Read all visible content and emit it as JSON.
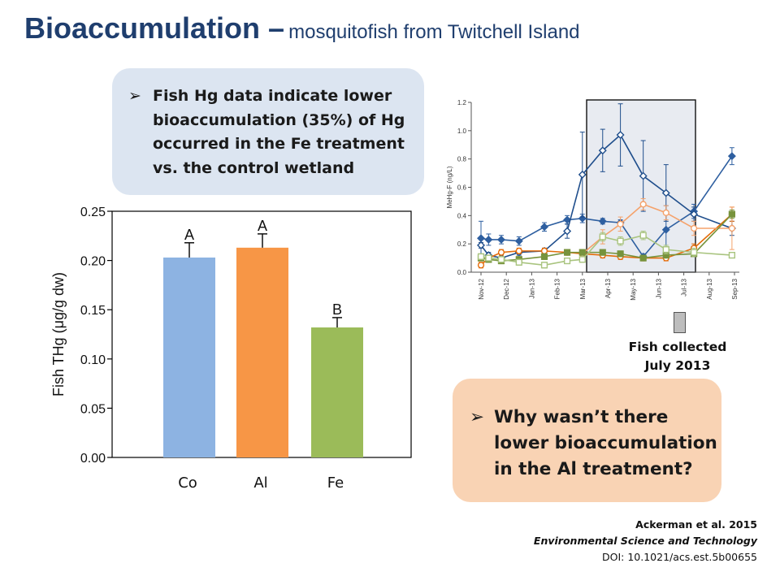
{
  "slide": {
    "title": "Bioaccumulation –",
    "subtitle": "mosquitofish from Twitchell Island"
  },
  "callouts": {
    "top": "Fish Hg data indicate lower bioaccumulation (35%) of Hg occurred in the Fe treatment vs. the control wetland",
    "bottom": "Why wasn’t there lower bioaccumulation in the Al treatment?",
    "bullet_symbol": "➢"
  },
  "annotation": {
    "line1": "Fish collected",
    "line2": "July 2013"
  },
  "citation": {
    "authors": "Ackerman et al. 2015",
    "journal": "Environmental Science and Technology",
    "doi": "DOI: 10.1021/acs.est.5b00655"
  },
  "colors": {
    "title": "#1f3e6e",
    "co": "#8db3e2",
    "al": "#f79646",
    "fe": "#9bbb59",
    "highlight_box": "#e8ebf1"
  },
  "chart_data": [
    {
      "type": "bar",
      "categories": [
        "Co",
        "Al",
        "Fe"
      ],
      "values": [
        0.203,
        0.213,
        0.132
      ],
      "errors": [
        0.015,
        0.014,
        0.01
      ],
      "letters": [
        "A",
        "A",
        "B"
      ],
      "colors": [
        "#8db3e2",
        "#f79646",
        "#9bbb59"
      ],
      "ylabel": "Fish THg (μg/g dw)",
      "ylim": [
        0,
        0.25
      ],
      "yticks": [
        "0.00",
        "0.05",
        "0.10",
        "0.15",
        "0.20",
        "0.25"
      ],
      "grid": false
    },
    {
      "type": "line",
      "ylabel": "MeHg-F (ng/L)",
      "ylim": [
        0,
        1.2
      ],
      "yticks": [
        "0.0",
        "0.2",
        "0.4",
        "0.6",
        "0.8",
        "1.0",
        "1.2"
      ],
      "xticks": [
        "Nov-12",
        "Dec-12",
        "Jan-13",
        "Feb-13",
        "Mar-13",
        "Apr-13",
        "May-13",
        "Jun-13",
        "Jul-13",
        "Aug-13",
        "Sep-13"
      ],
      "highlight_range": [
        "Mar-13",
        "Aug-13"
      ],
      "series": [
        {
          "color": "#2e5fa0",
          "marker": "diamond",
          "filled": true,
          "x": [
            0,
            0.3,
            0.8,
            1.5,
            2.5,
            3.4,
            4.0,
            4.8,
            5.5,
            6.4,
            7.3,
            8.4,
            9.9
          ],
          "y": [
            0.24,
            0.23,
            0.23,
            0.22,
            0.32,
            0.37,
            0.38,
            0.36,
            0.35,
            0.11,
            0.3,
            0.43,
            0.82
          ],
          "err": [
            0.12,
            0.04,
            0.03,
            0.03,
            0.03,
            0.03,
            0.03,
            0.02,
            0.02,
            0.02,
            0.17,
            0.05,
            0.06
          ]
        },
        {
          "color": "#1f4e8c",
          "marker": "diamond",
          "filled": false,
          "x": [
            0,
            0.3,
            0.8,
            1.5,
            2.5,
            3.4,
            4.0,
            4.8,
            5.5,
            6.4,
            7.3,
            8.4,
            9.9
          ],
          "y": [
            0.19,
            0.12,
            0.1,
            0.14,
            0.15,
            0.29,
            0.69,
            0.86,
            0.97,
            0.68,
            0.56,
            0.41,
            0.31
          ],
          "err": [
            0.02,
            0.02,
            0.02,
            0.02,
            0.02,
            0.05,
            0.3,
            0.15,
            0.22,
            0.25,
            0.2,
            0.05,
            0.05
          ]
        },
        {
          "color": "#e46c0a",
          "marker": "circle",
          "filled": false,
          "x": [
            0,
            0.3,
            0.8,
            1.5,
            2.5,
            3.4,
            4.0,
            4.8,
            5.5,
            6.4,
            7.3,
            8.4,
            9.9
          ],
          "y": [
            0.05,
            0.1,
            0.14,
            0.15,
            0.15,
            0.14,
            0.13,
            0.12,
            0.11,
            0.1,
            0.1,
            0.17,
            0.41
          ],
          "err": [
            0.02,
            0.02,
            0.02,
            0.02,
            0.02,
            0.02,
            0.02,
            0.02,
            0.02,
            0.02,
            0.02,
            0.03,
            0.05
          ]
        },
        {
          "color": "#f5a26b",
          "marker": "circle",
          "filled": false,
          "x": [
            4.0,
            4.8,
            5.5,
            6.4,
            7.3,
            8.4,
            9.9
          ],
          "y": [
            0.13,
            0.25,
            0.34,
            0.48,
            0.42,
            0.31,
            0.31
          ],
          "err": [
            0.03,
            0.05,
            0.05,
            0.04,
            0.05,
            0.05,
            0.15
          ]
        },
        {
          "color": "#77933c",
          "marker": "square",
          "filled": true,
          "x": [
            0,
            0.3,
            0.8,
            1.5,
            2.5,
            3.4,
            4.0,
            4.8,
            5.5,
            6.4,
            7.3,
            8.4,
            9.9
          ],
          "y": [
            0.1,
            0.09,
            0.08,
            0.09,
            0.11,
            0.14,
            0.14,
            0.14,
            0.13,
            0.1,
            0.12,
            0.13,
            0.41
          ],
          "err": [
            0.02,
            0.02,
            0.02,
            0.02,
            0.02,
            0.02,
            0.02,
            0.02,
            0.02,
            0.02,
            0.02,
            0.02,
            0.03
          ]
        },
        {
          "color": "#a9c47f",
          "marker": "square",
          "filled": false,
          "x": [
            0,
            0.3,
            0.8,
            1.5,
            2.5,
            3.4,
            4.0,
            4.8,
            5.5,
            6.4,
            7.3,
            8.4,
            9.9
          ],
          "y": [
            0.11,
            0.1,
            0.09,
            0.07,
            0.05,
            0.08,
            0.09,
            0.25,
            0.22,
            0.26,
            0.16,
            0.14,
            0.12
          ],
          "err": [
            0.02,
            0.02,
            0.02,
            0.02,
            0.02,
            0.02,
            0.02,
            0.03,
            0.03,
            0.03,
            0.03,
            0.03,
            0.02
          ]
        }
      ]
    }
  ]
}
